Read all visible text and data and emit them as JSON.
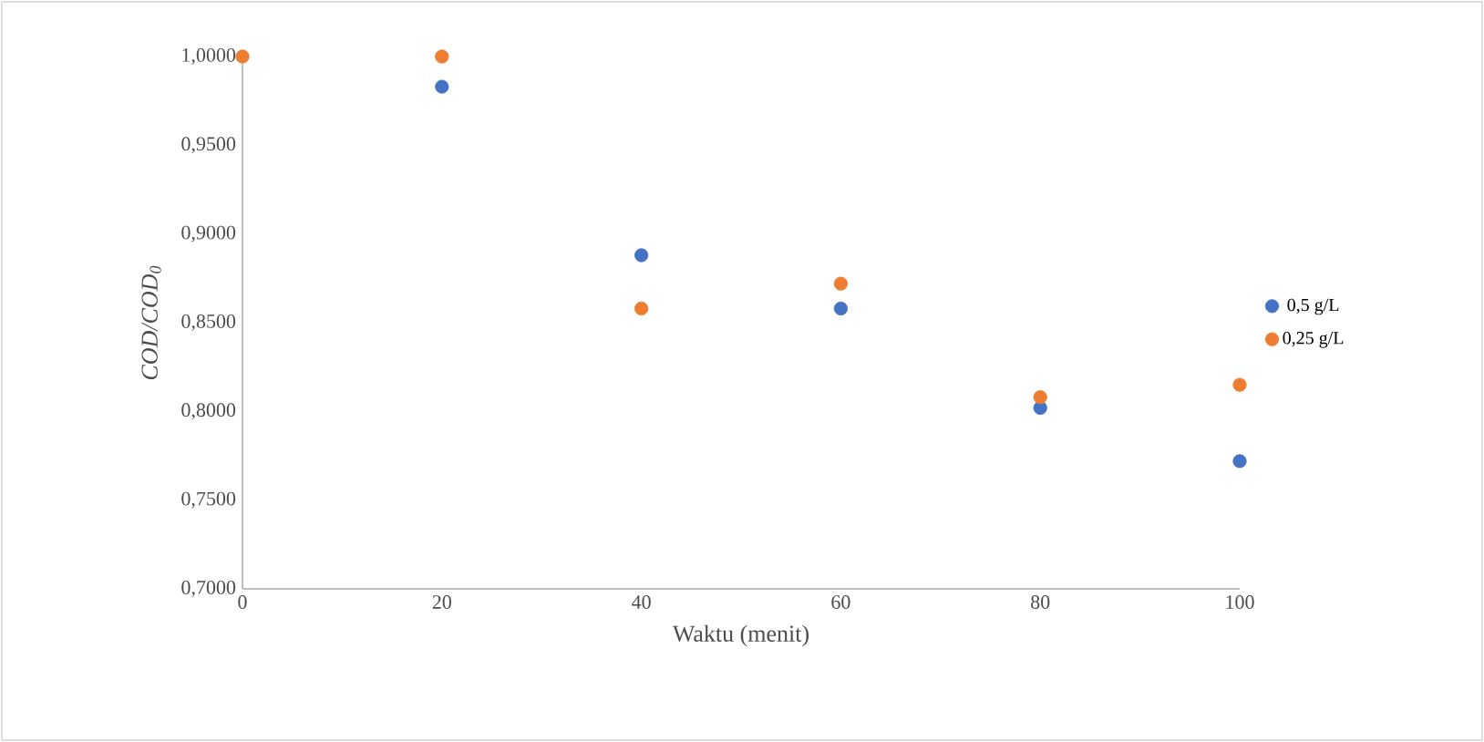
{
  "chart_data": {
    "type": "scatter",
    "xlabel": "Waktu (menit)",
    "ylabel": "COD/COD$_{0}$",
    "x": [
      0,
      20,
      40,
      60,
      80,
      100
    ],
    "series": [
      {
        "name": "0,5 g/L",
        "color": "#4472c4",
        "values": [
          null,
          0.983,
          0.888,
          0.858,
          0.802,
          0.772
        ]
      },
      {
        "name": "0,25 g/L",
        "color": "#ed7d31",
        "values": [
          1.0,
          1.0,
          0.858,
          0.872,
          0.808,
          0.815
        ]
      }
    ],
    "xlim": [
      0,
      100
    ],
    "xticks": [
      0,
      20,
      40,
      60,
      80,
      100
    ],
    "ylim": [
      0.7,
      1.0
    ],
    "yticks": [
      {
        "value": 0.7,
        "label": "0,7000"
      },
      {
        "value": 0.75,
        "label": "0,7500"
      },
      {
        "value": 0.8,
        "label": "0,8000"
      },
      {
        "value": 0.85,
        "label": "0,8500"
      },
      {
        "value": 0.9,
        "label": "0,9000"
      },
      {
        "value": 0.95,
        "label": "0,9500"
      },
      {
        "value": 1.0,
        "label": "1,0000"
      }
    ],
    "grid": false,
    "legend": "right",
    "marker": "circle"
  }
}
